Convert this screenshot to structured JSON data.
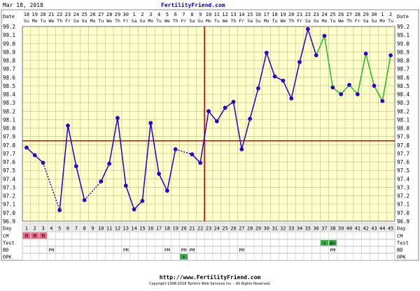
{
  "header": {
    "date": "Mar 18, 2018",
    "site": "FertilityFriend.com"
  },
  "footer": {
    "url": "http://www.FertilityFriend.com",
    "copyright": "Copyright 1998-2018 Tamtris Web Services Inc. - All Rights Reserved."
  },
  "chart_data": {
    "type": "line",
    "row_labels": {
      "date": "Date",
      "day": "Day",
      "cm": "CM",
      "test": "Test",
      "bd": "BD",
      "opk": "OPK"
    },
    "dates": [
      "18",
      "19",
      "20",
      "21",
      "22",
      "23",
      "24",
      "25",
      "26",
      "27",
      "28",
      "29",
      "30",
      "1",
      "2",
      "3",
      "4",
      "5",
      "6",
      "7",
      "8",
      "9",
      "10",
      "11",
      "12",
      "13",
      "14",
      "15",
      "16",
      "17",
      "18",
      "19",
      "20",
      "21",
      "22",
      "23",
      "24",
      "25",
      "26",
      "27",
      "28",
      "29",
      "30",
      "1",
      "2"
    ],
    "weekdays": [
      "Su",
      "Mo",
      "Tu",
      "We",
      "Th",
      "Fr",
      "Sa",
      "Su",
      "Mo",
      "Tu",
      "We",
      "Th",
      "Fr",
      "Sa",
      "Su",
      "Mo",
      "Tu",
      "We",
      "Th",
      "Fr",
      "Sa",
      "Su",
      "Mo",
      "Tu",
      "We",
      "Th",
      "Fr",
      "Sa",
      "Su",
      "Mo",
      "Tu",
      "We",
      "Th",
      "Fr",
      "Sa",
      "Su",
      "Mo",
      "Tu",
      "We",
      "Th",
      "Fr",
      "Sa",
      "Su",
      "Mo",
      "Tu"
    ],
    "days": [
      1,
      2,
      3,
      4,
      5,
      6,
      7,
      8,
      9,
      10,
      11,
      12,
      13,
      14,
      15,
      16,
      17,
      18,
      19,
      20,
      21,
      22,
      23,
      24,
      25,
      26,
      27,
      28,
      29,
      30,
      31,
      32,
      33,
      34,
      35,
      36,
      37,
      38,
      39,
      40,
      41,
      42,
      43,
      44,
      45
    ],
    "ylim": [
      96.9,
      99.2
    ],
    "y_ticks": [
      "99.2",
      "99.1",
      "99.0",
      "98.9",
      "98.8",
      "98.7",
      "98.6",
      "98.5",
      "98.4",
      "98.3",
      "98.2",
      "98.1",
      "98.0",
      "97.9",
      "97.8",
      "97.7",
      "97.6",
      "97.5",
      "97.4",
      "97.3",
      "97.2",
      "97.1",
      "97.0",
      "96.9"
    ],
    "coverline": 97.85,
    "ovulation_day": 22,
    "temperatures": [
      97.77,
      97.68,
      97.59,
      null,
      97.03,
      98.03,
      97.55,
      97.15,
      null,
      97.37,
      97.58,
      98.12,
      97.32,
      97.04,
      97.14,
      98.06,
      97.46,
      97.26,
      97.75,
      null,
      97.69,
      97.59,
      98.2,
      98.08,
      98.24,
      98.31,
      97.75,
      98.11,
      98.47,
      98.89,
      98.61,
      98.56,
      98.35,
      98.78,
      99.17,
      98.86,
      99.09,
      98.48,
      98.4,
      98.51,
      98.4,
      98.88,
      98.5,
      98.32,
      98.86
    ],
    "dashed_segments": [
      [
        3,
        5
      ],
      [
        19,
        21
      ]
    ],
    "phase_change_day": 36,
    "colors": {
      "prephase": "#2200cc",
      "postphase": "#22bb22",
      "marker": "#3300cc",
      "coverline": "#dd0000",
      "plot_bg": "#ffffcc",
      "grid": "#bbbb88",
      "cm_mark": "#ee6688",
      "test_mark": "#33aa44",
      "opk_mark": "#33aa44"
    },
    "cm": [
      {
        "day": 1,
        "text": "M"
      },
      {
        "day": 2,
        "text": "M"
      },
      {
        "day": 3,
        "text": "M"
      }
    ],
    "test": [
      {
        "day": 37,
        "text": "+"
      },
      {
        "day": 38,
        "text": "B+"
      }
    ],
    "bd": [
      {
        "day": 4,
        "text": "PM"
      },
      {
        "day": 13,
        "text": "PM"
      },
      {
        "day": 18,
        "text": "PM"
      },
      {
        "day": 20,
        "text": "PM"
      },
      {
        "day": 21,
        "text": "PM"
      },
      {
        "day": 27,
        "text": "PM"
      },
      {
        "day": 38,
        "text": "PM"
      }
    ],
    "opk": [
      {
        "day": 20,
        "text": "+"
      }
    ]
  }
}
